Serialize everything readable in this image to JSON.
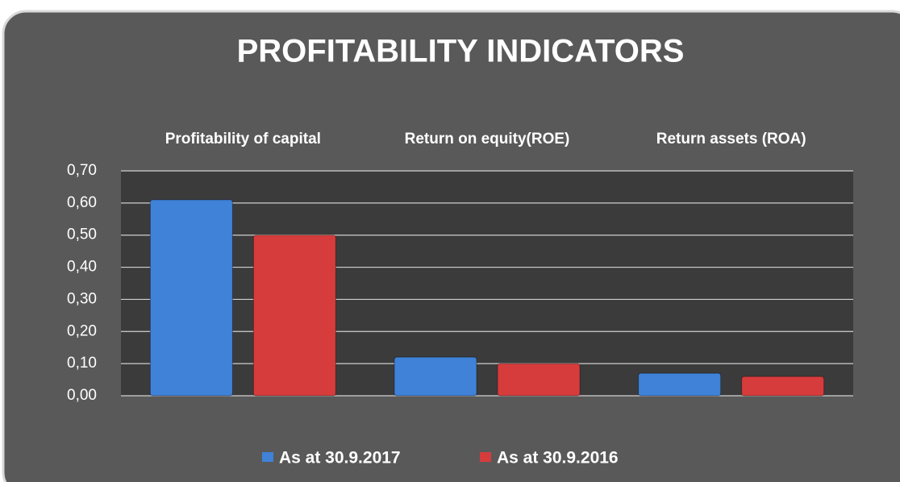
{
  "chart_data": {
    "type": "bar",
    "title": "PROFITABILITY INDICATORS",
    "categories": [
      "Profitability of capital",
      "Return on equity(ROE)",
      "Return assets (ROA)"
    ],
    "series": [
      {
        "name": "As at 30.9.2017",
        "color": "#3f82d8",
        "values": [
          0.61,
          0.12,
          0.07
        ]
      },
      {
        "name": "As at 30.9.2016",
        "color": "#d63c3c",
        "values": [
          0.5,
          0.1,
          0.06
        ]
      }
    ],
    "ylim": [
      0,
      0.7
    ],
    "yticks": [
      {
        "value": 0,
        "label": "0,00"
      },
      {
        "value": 0.1,
        "label": "0,10"
      },
      {
        "value": 0.2,
        "label": "0,20"
      },
      {
        "value": 0.3,
        "label": "0,30"
      },
      {
        "value": 0.4,
        "label": "0,40"
      },
      {
        "value": 0.5,
        "label": "0,50"
      },
      {
        "value": 0.6,
        "label": "0,60"
      },
      {
        "value": 0.7,
        "label": "0,70"
      }
    ],
    "grid": true,
    "legend": "bottom"
  }
}
